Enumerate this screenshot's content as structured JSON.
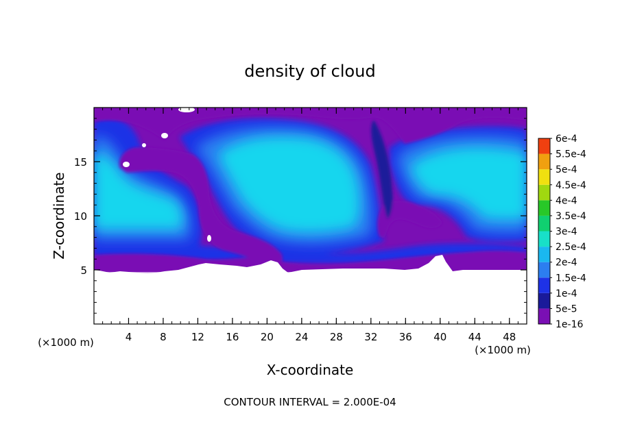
{
  "chart_data": {
    "type": "heatmap",
    "title": "density of cloud",
    "xlabel": "X-coordinate",
    "ylabel": "Z-coordinate",
    "x_unit": "(×1000 m)",
    "x_unit_right": "(×1000 m)",
    "footer": "CONTOUR INTERVAL = 2.000E-04",
    "xlim": [
      0,
      50
    ],
    "ylim": [
      0,
      20
    ],
    "x_ticks": [
      4,
      8,
      12,
      16,
      20,
      24,
      28,
      32,
      36,
      40,
      44,
      48
    ],
    "x_tick_labels": [
      "4",
      "8",
      "12",
      "16",
      "20",
      "24",
      "28",
      "32",
      "36",
      "40",
      "44",
      "48"
    ],
    "y_ticks": [
      5,
      10,
      15
    ],
    "y_tick_labels": [
      "5",
      "10",
      "15"
    ],
    "colorbar": {
      "levels": [
        "1e-16",
        "5e-5",
        "1e-4",
        "1.5e-4",
        "2e-4",
        "2.5e-4",
        "3e-4",
        "3.5e-4",
        "4e-4",
        "4.5e-4",
        "5e-4",
        "5.5e-4",
        "6e-4"
      ],
      "colors": [
        "#7a0fb4",
        "#1a1a9a",
        "#1e32e6",
        "#2c7ef0",
        "#1ab8f0",
        "#18e0c8",
        "#10d070",
        "#28c828",
        "#a0d810",
        "#f0e010",
        "#f0a010",
        "#f04010",
        "#f08080"
      ]
    },
    "cloud_base_z": 5,
    "cloud_top_z": 19.8,
    "field_description": "Cloud density field; values mostly 1e-4 to 2e-4 inside two large circulation cells; low values (1e-16) along boundaries, a diagonal filament near x=12-22 km, and a vortex near x=33-38 km; no cloud below z=5 km."
  }
}
